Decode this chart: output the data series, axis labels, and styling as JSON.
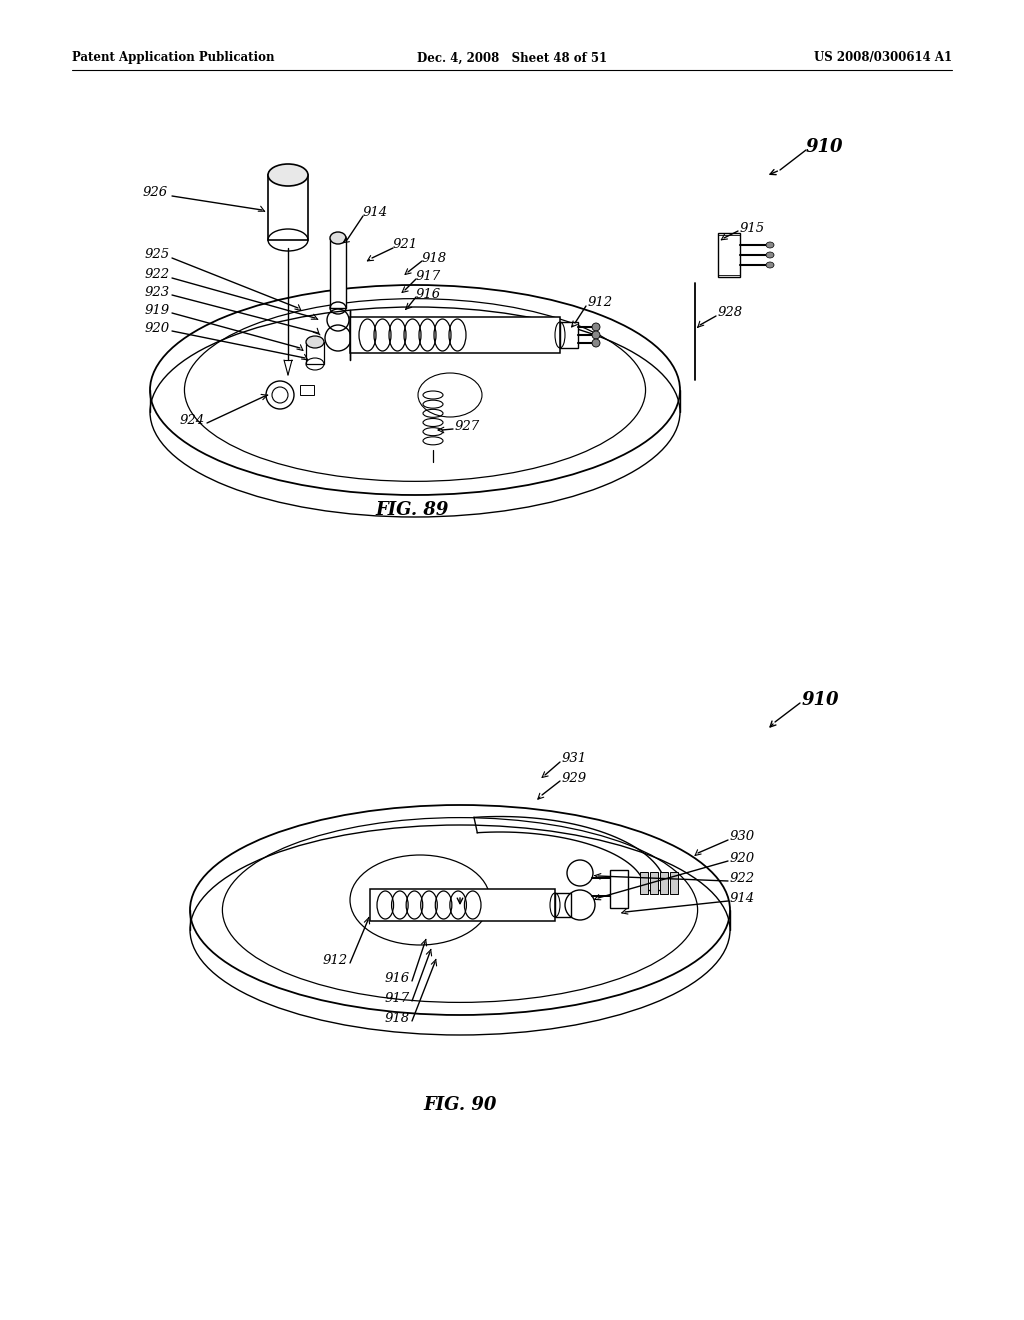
{
  "header_left": "Patent Application Publication",
  "header_mid": "Dec. 4, 2008   Sheet 48 of 51",
  "header_right": "US 2008/0300614 A1",
  "fig89_label": "FIG. 89",
  "fig90_label": "FIG. 90",
  "bg_color": "#ffffff",
  "line_color": "#000000",
  "text_color": "#000000"
}
